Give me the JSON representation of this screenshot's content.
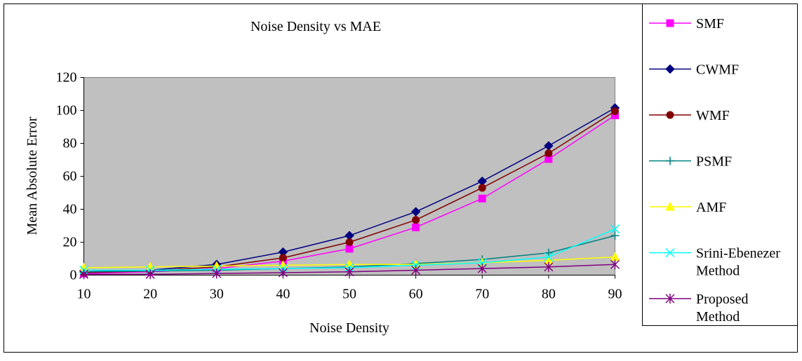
{
  "chart_data": {
    "type": "line",
    "title": "Noise Density vs MAE",
    "xlabel": "Noise Density",
    "ylabel": "Mean Absolute Error",
    "categories": [
      "10",
      "20",
      "30",
      "40",
      "50",
      "60",
      "70",
      "80",
      "90"
    ],
    "ylim": [
      0,
      120
    ],
    "yticks": [
      "0",
      "20",
      "40",
      "60",
      "80",
      "100",
      "120"
    ],
    "grid": false,
    "plot_background": "#c0c0c0",
    "legend_position": "right",
    "series": [
      {
        "name": "SMF",
        "color": "#ff00ff",
        "marker": "square",
        "values": [
          1,
          2,
          4,
          8.5,
          16,
          29,
          46.5,
          70.5,
          97
        ]
      },
      {
        "name": "CWMF",
        "color": "#000080",
        "marker": "diamond",
        "values": [
          2,
          3,
          6.5,
          14,
          24,
          38.5,
          57,
          78.5,
          101.5
        ]
      },
      {
        "name": "WMF",
        "color": "#800000",
        "marker": "circle",
        "values": [
          1.5,
          2.5,
          5,
          10.5,
          20,
          33.5,
          53,
          74,
          99.5
        ]
      },
      {
        "name": "PSMF",
        "color": "#008080",
        "marker": "plus",
        "values": [
          2,
          2.5,
          3,
          4,
          5,
          7,
          9.5,
          13.5,
          24
        ]
      },
      {
        "name": "AMF",
        "color": "#ffff00",
        "marker": "triangle",
        "values": [
          4.5,
          5,
          5.5,
          6,
          6.5,
          6.5,
          7.5,
          9,
          11
        ]
      },
      {
        "name": "Srini-Ebenezer Method",
        "name_lines": [
          "Srini-Ebenezer",
          "Method"
        ],
        "color": "#00ffff",
        "marker": "x",
        "values": [
          3,
          3,
          3.5,
          4,
          4.5,
          6,
          7.5,
          11,
          28
        ]
      },
      {
        "name": "Proposed Method",
        "name_lines": [
          "Proposed",
          "Method"
        ],
        "color": "#800080",
        "marker": "star",
        "values": [
          0.5,
          0.5,
          1,
          1.5,
          2,
          3,
          4,
          5,
          6.5
        ]
      }
    ]
  }
}
